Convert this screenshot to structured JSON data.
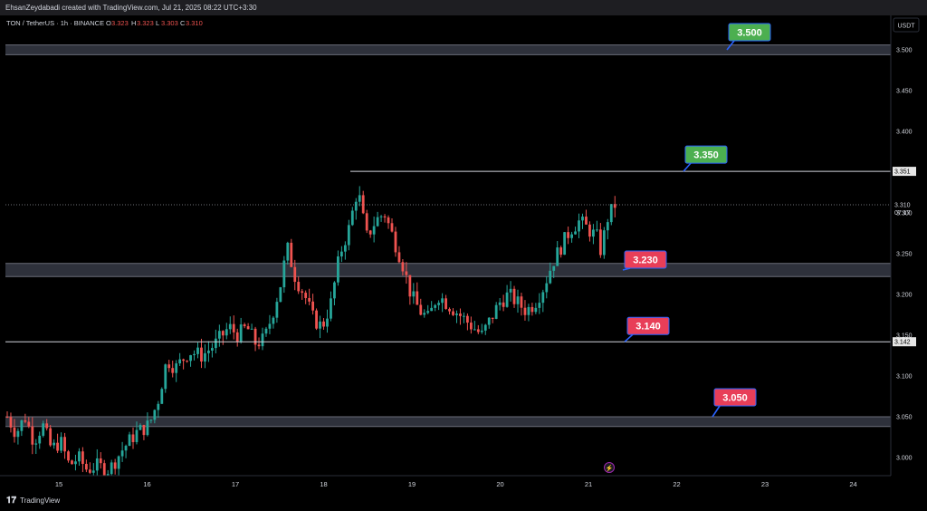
{
  "header": {
    "attribution": "EhsanZeydabadi created with TradingView.com, Jul 21, 2025 08:22 UTC+3:30"
  },
  "legend": {
    "symbol": "TON / TetherUS · 1h · BINANCE",
    "o_label": "O",
    "o": "3.323",
    "h_label": "H",
    "h": "3.323",
    "l_label": "L",
    "l": "3.303",
    "c_label": "C",
    "c": "3.310"
  },
  "currency": "USDT",
  "footer": {
    "brand": "TradingView"
  },
  "colors": {
    "up": "#26a69a",
    "down": "#ef5350",
    "green_tag": "#4caf50",
    "red_tag": "#e83e58",
    "line": "#d1d4dc",
    "zone": "#363a45"
  },
  "chart_data": {
    "type": "candlestick",
    "symbol": "TON/USDT",
    "ylim": [
      2.98,
      3.53
    ],
    "y_ticks": [
      "3.000",
      "3.050",
      "3.100",
      "3.150",
      "3.200",
      "3.250",
      "3.300",
      "3.350",
      "3.400",
      "3.450",
      "3.500"
    ],
    "x_ticks": [
      "15",
      "16",
      "17",
      "18",
      "19",
      "20",
      "21",
      "22",
      "23",
      "24"
    ],
    "price_labels": {
      "top_line": "3.351",
      "last": "3.310",
      "countdown": "07:17",
      "support_line": "3.142"
    },
    "levels": [
      {
        "label": "3.500",
        "price": 3.5,
        "kind": "zone",
        "color": "green",
        "lo": 3.494,
        "hi": 3.506
      },
      {
        "label": "3.350",
        "price": 3.351,
        "kind": "line",
        "color": "green"
      },
      {
        "label": "3.230",
        "price": 3.23,
        "kind": "zone",
        "color": "red",
        "lo": 3.222,
        "hi": 3.238
      },
      {
        "label": "3.140",
        "price": 3.142,
        "kind": "line",
        "color": "red"
      },
      {
        "label": "3.050",
        "price": 3.05,
        "kind": "zone",
        "color": "red",
        "lo": 3.038,
        "hi": 3.05
      }
    ],
    "close_path": [
      [
        14.4,
        3.05
      ],
      [
        14.5,
        3.03
      ],
      [
        14.6,
        3.05
      ],
      [
        14.7,
        3.02
      ],
      [
        14.8,
        3.04
      ],
      [
        14.9,
        3.01
      ],
      [
        15.0,
        3.02
      ],
      [
        15.1,
        2.99
      ],
      [
        15.2,
        3.0
      ],
      [
        15.3,
        2.985
      ],
      [
        15.4,
        2.99
      ],
      [
        15.55,
        2.985
      ],
      [
        15.7,
        3.01
      ],
      [
        15.85,
        3.03
      ],
      [
        16.0,
        3.04
      ],
      [
        16.1,
        3.07
      ],
      [
        16.2,
        3.12
      ],
      [
        16.3,
        3.11
      ],
      [
        16.45,
        3.13
      ],
      [
        16.6,
        3.125
      ],
      [
        16.75,
        3.14
      ],
      [
        16.9,
        3.16
      ],
      [
        17.0,
        3.15
      ],
      [
        17.1,
        3.16
      ],
      [
        17.2,
        3.14
      ],
      [
        17.3,
        3.145
      ],
      [
        17.4,
        3.18
      ],
      [
        17.5,
        3.22
      ],
      [
        17.55,
        3.26
      ],
      [
        17.65,
        3.22
      ],
      [
        17.75,
        3.2
      ],
      [
        17.85,
        3.17
      ],
      [
        17.95,
        3.16
      ],
      [
        18.05,
        3.19
      ],
      [
        18.15,
        3.25
      ],
      [
        18.25,
        3.28
      ],
      [
        18.35,
        3.33
      ],
      [
        18.45,
        3.27
      ],
      [
        18.55,
        3.29
      ],
      [
        18.65,
        3.3
      ],
      [
        18.75,
        3.27
      ],
      [
        18.85,
        3.24
      ],
      [
        18.95,
        3.2
      ],
      [
        19.05,
        3.18
      ],
      [
        19.15,
        3.17
      ],
      [
        19.25,
        3.2
      ],
      [
        19.35,
        3.19
      ],
      [
        19.45,
        3.18
      ],
      [
        19.55,
        3.17
      ],
      [
        19.65,
        3.16
      ],
      [
        19.75,
        3.15
      ],
      [
        19.85,
        3.17
      ],
      [
        19.95,
        3.19
      ],
      [
        20.05,
        3.2
      ],
      [
        20.15,
        3.19
      ],
      [
        20.25,
        3.18
      ],
      [
        20.35,
        3.19
      ],
      [
        20.45,
        3.21
      ],
      [
        20.55,
        3.24
      ],
      [
        20.65,
        3.26
      ],
      [
        20.75,
        3.28
      ],
      [
        20.85,
        3.29
      ],
      [
        20.95,
        3.28
      ],
      [
        21.05,
        3.27
      ],
      [
        21.1,
        3.25
      ],
      [
        21.15,
        3.29
      ],
      [
        21.25,
        3.31
      ]
    ]
  }
}
